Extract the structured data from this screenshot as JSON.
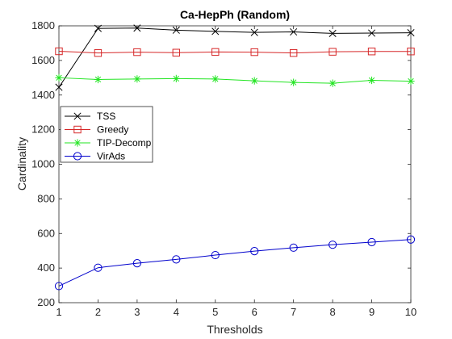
{
  "chart_data": {
    "type": "line",
    "title": "Ca-HepPh (Random)",
    "xlabel": "Thresholds",
    "ylabel": "Cardinality",
    "x": [
      1,
      2,
      3,
      4,
      5,
      6,
      7,
      8,
      9,
      10
    ],
    "xlim": [
      1,
      10
    ],
    "ylim": [
      200,
      1800
    ],
    "xticks": [
      "1",
      "2",
      "3",
      "4",
      "5",
      "6",
      "7",
      "8",
      "9",
      "10"
    ],
    "yticks": [
      "200",
      "400",
      "600",
      "800",
      "1000",
      "1200",
      "1400",
      "1600",
      "1800"
    ],
    "grid": false,
    "legend_position": "left",
    "series": [
      {
        "name": "TSS",
        "color": "#000000",
        "marker": "x",
        "values": [
          1445,
          1785,
          1787,
          1775,
          1768,
          1762,
          1765,
          1756,
          1758,
          1760
        ]
      },
      {
        "name": "Greedy",
        "color": "#d62728",
        "marker": "square",
        "values": [
          1653,
          1643,
          1648,
          1645,
          1649,
          1648,
          1643,
          1650,
          1652,
          1652
        ]
      },
      {
        "name": "TIP-Decomp",
        "color": "#22e522",
        "marker": "star",
        "values": [
          1500,
          1490,
          1493,
          1495,
          1493,
          1482,
          1473,
          1468,
          1485,
          1480
        ]
      },
      {
        "name": "VirAds",
        "color": "#0000cc",
        "marker": "circle",
        "values": [
          296,
          402,
          428,
          450,
          475,
          498,
          518,
          535,
          550,
          565
        ]
      }
    ]
  }
}
